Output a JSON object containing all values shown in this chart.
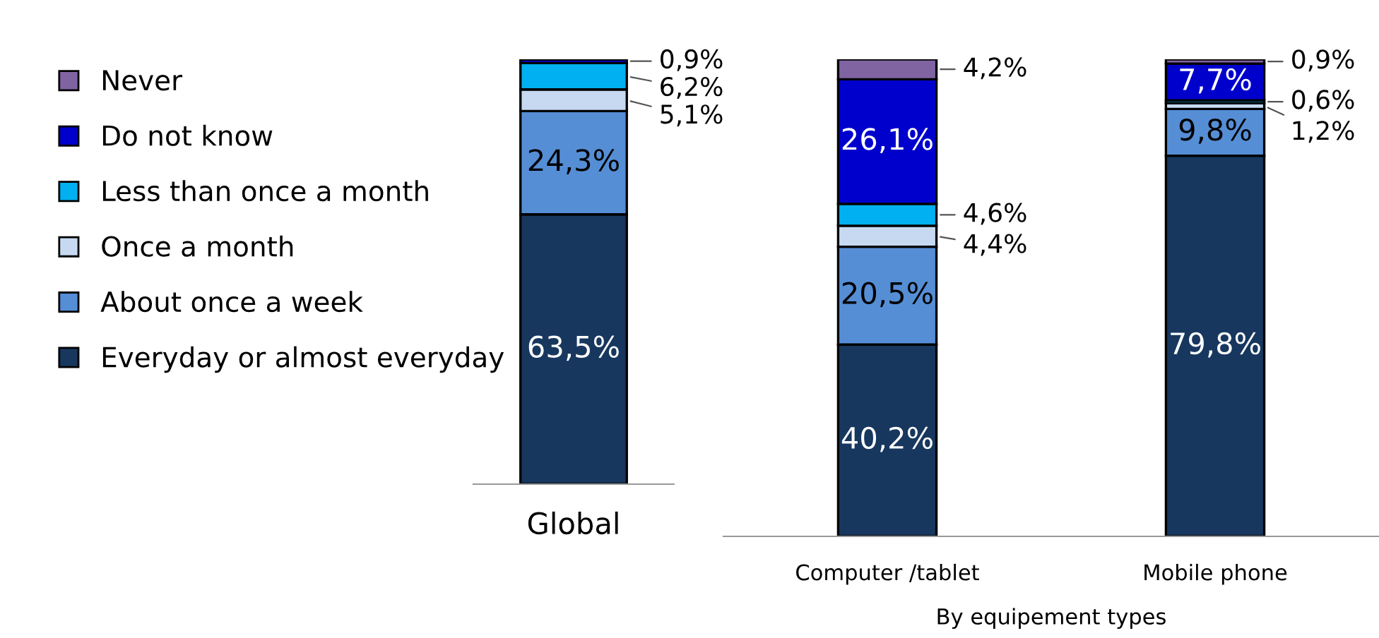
{
  "chart_data": [
    {
      "type": "bar",
      "stacked": true,
      "legend": "left",
      "categories": [
        "Global"
      ],
      "series": [
        {
          "name": "Everyday or almost everyday",
          "color": "#17375e",
          "values": [
            63.5
          ],
          "value_labels": [
            "63,5%"
          ]
        },
        {
          "name": "About once a week",
          "color": "#558ed5",
          "values": [
            24.3
          ],
          "value_labels": [
            "24,3%"
          ]
        },
        {
          "name": "Once a month",
          "color": "#c6d9f1",
          "values": [
            5.1
          ],
          "value_labels": [
            "5,1%"
          ]
        },
        {
          "name": "Less than once a month",
          "color": "#00b0f0",
          "values": [
            6.2
          ],
          "value_labels": [
            "6,2%"
          ]
        },
        {
          "name": "Do not know",
          "color": "#0000cc",
          "values": [
            0.9
          ],
          "value_labels": [
            "0,9%"
          ]
        },
        {
          "name": "Never",
          "color": "#8064a2",
          "values": [
            null
          ],
          "value_labels": [
            null
          ]
        }
      ]
    },
    {
      "type": "bar",
      "stacked": true,
      "categories": [
        "Computer /tablet",
        "Mobile phone"
      ],
      "annotations": [
        "By equipement types"
      ],
      "series": [
        {
          "color": "#17375e",
          "values": [
            40.2,
            79.8
          ],
          "value_labels": [
            "40,2%",
            "79,8%"
          ]
        },
        {
          "color": "#558ed5",
          "values": [
            20.5,
            9.8
          ],
          "value_labels": [
            "20,5%",
            "9,8%"
          ]
        },
        {
          "color": "#c6d9f1",
          "values": [
            4.4,
            1.2
          ],
          "value_labels": [
            "4,4%",
            "1,2%"
          ]
        },
        {
          "color": "#00b0f0",
          "values": [
            4.6,
            0.6
          ],
          "value_labels": [
            "4,6%",
            "0,6%"
          ]
        },
        {
          "color": "#0000cc",
          "values": [
            26.1,
            7.7
          ],
          "value_labels": [
            "26,1%",
            "7,7%"
          ]
        },
        {
          "color": "#8064a2",
          "values": [
            4.2,
            0.9
          ],
          "value_labels": [
            "4,2%",
            "0,9%"
          ]
        }
      ]
    }
  ]
}
